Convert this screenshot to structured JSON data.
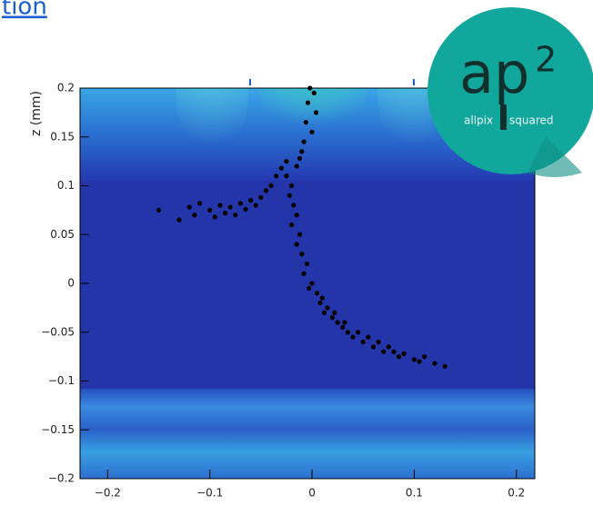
{
  "header": {
    "title": "tion"
  },
  "logo": {
    "mark": "ap",
    "superscript": "2",
    "left": "allpix",
    "right": "squared"
  },
  "chart_data": {
    "type": "scatter",
    "ylabel": "z (mm)",
    "color": "#000000",
    "x": [
      -0.15,
      -0.13,
      -0.12,
      -0.115,
      -0.11,
      -0.1,
      -0.095,
      -0.09,
      -0.085,
      -0.08,
      -0.075,
      -0.07,
      -0.065,
      -0.06,
      -0.055,
      -0.05,
      -0.045,
      -0.04,
      -0.035,
      -0.03,
      -0.025,
      -0.002,
      0.002,
      -0.004,
      0.004,
      -0.006,
      0.0,
      -0.008,
      -0.01,
      -0.012,
      -0.015,
      -0.025,
      -0.02,
      -0.022,
      -0.018,
      -0.015,
      -0.02,
      -0.012,
      -0.015,
      -0.01,
      -0.005,
      -0.008,
      0.0,
      -0.003,
      0.005,
      0.008,
      0.01,
      0.015,
      0.012,
      0.02,
      0.025,
      0.022,
      0.03,
      0.035,
      0.032,
      0.04,
      0.045,
      0.05,
      0.055,
      0.06,
      0.065,
      0.07,
      0.075,
      0.08,
      0.085,
      0.09,
      0.1,
      0.105,
      0.11,
      0.12,
      0.13
    ],
    "y": [
      0.075,
      0.065,
      0.078,
      0.07,
      0.082,
      0.075,
      0.068,
      0.08,
      0.072,
      0.078,
      0.07,
      0.082,
      0.076,
      0.085,
      0.08,
      0.088,
      0.095,
      0.1,
      0.11,
      0.118,
      0.125,
      0.2,
      0.195,
      0.185,
      0.175,
      0.165,
      0.155,
      0.145,
      0.135,
      0.128,
      0.12,
      0.11,
      0.1,
      0.09,
      0.08,
      0.07,
      0.06,
      0.05,
      0.04,
      0.03,
      0.02,
      0.01,
      0.0,
      -0.005,
      -0.01,
      -0.02,
      -0.015,
      -0.025,
      -0.03,
      -0.035,
      -0.04,
      -0.03,
      -0.045,
      -0.05,
      -0.04,
      -0.055,
      -0.05,
      -0.06,
      -0.055,
      -0.065,
      -0.06,
      -0.07,
      -0.065,
      -0.07,
      -0.075,
      -0.072,
      -0.078,
      -0.08,
      -0.075,
      -0.082,
      -0.085
    ],
    "xlim": [
      -0.227,
      0.218
    ],
    "ylim": [
      -0.2,
      0.2
    ],
    "xticks": [
      {
        "value": -0.2,
        "label": "−0.2"
      },
      {
        "value": -0.1,
        "label": "−0.1"
      },
      0,
      0.1,
      0.2
    ],
    "yticks": [
      0.2,
      0.15,
      0.1,
      0.05,
      0,
      {
        "value": -0.05,
        "label": "−0.05"
      },
      {
        "value": -0.1,
        "label": "−0.1"
      },
      {
        "value": -0.15,
        "label": "−0.15"
      },
      {
        "value": -0.2,
        "label": "−0.2"
      }
    ]
  }
}
